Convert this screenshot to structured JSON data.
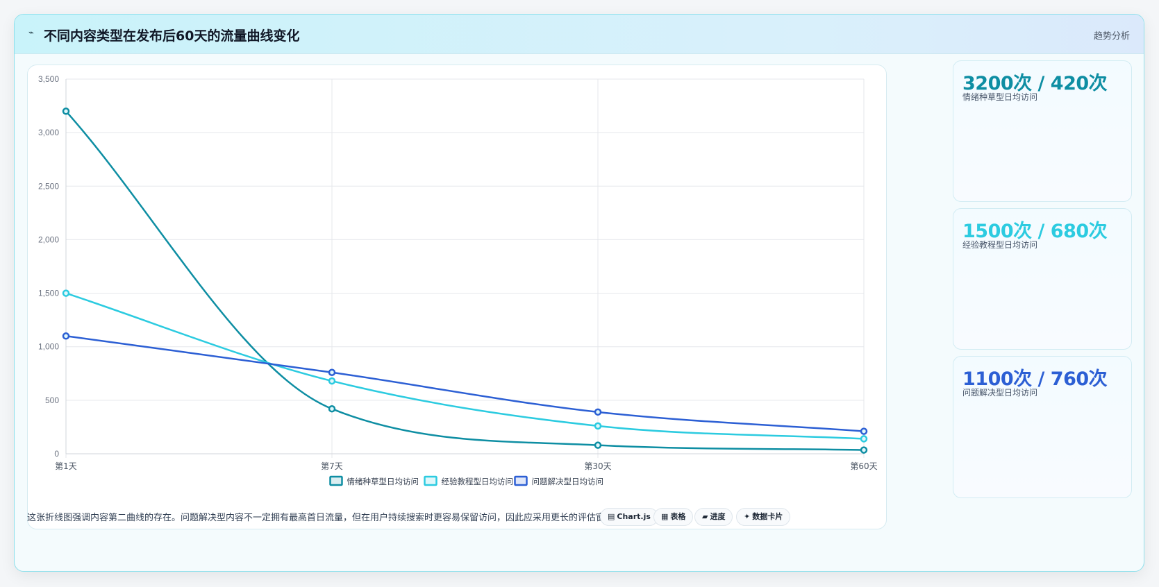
{
  "header": {
    "icon": "trend-wave-icon",
    "title": "不同内容类型在发布后60天的流量曲线变化",
    "tag": "趋势分析"
  },
  "stats": [
    {
      "value": "3200次 / 420次",
      "label": "情绪种草型日均访问",
      "color": "#0e8ea3"
    },
    {
      "value": "1500次 / 680次",
      "label": "经验教程型日均访问",
      "color": "#2ccbe0"
    },
    {
      "value": "1100次 / 760次",
      "label": "问题解决型日均访问",
      "color": "#2c5fd4"
    }
  ],
  "footer": {
    "note": "这张折线图强调内容第二曲线的存在。问题解决型内容不一定拥有最高首日流量，但在用户持续搜索时更容易保留访问，因此应采用更长的评估窗口。",
    "chips": [
      {
        "icon": "chart-icon",
        "glyph": "▤",
        "label": "Chart.js"
      },
      {
        "icon": "table-icon",
        "glyph": "▦",
        "label": "表格"
      },
      {
        "icon": "progress-icon",
        "glyph": "▰",
        "label": "进度"
      },
      {
        "icon": "sparkle-icon",
        "glyph": "✦",
        "label": "数据卡片"
      }
    ]
  },
  "chart_data": {
    "type": "line",
    "categories": [
      "第1天",
      "第7天",
      "第30天",
      "第60天"
    ],
    "series": [
      {
        "name": "情绪种草型日均访问",
        "color": "#0e8ea3",
        "values": [
          3200,
          420,
          80,
          35
        ]
      },
      {
        "name": "经验教程型日均访问",
        "color": "#2ccbe0",
        "values": [
          1500,
          680,
          260,
          140
        ]
      },
      {
        "name": "问题解决型日均访问",
        "color": "#2c5fd4",
        "values": [
          1100,
          760,
          390,
          210
        ]
      }
    ],
    "ylim": [
      0,
      3500
    ],
    "yticks": [
      "0",
      "500",
      "1,000",
      "1,500",
      "2,000",
      "2,500",
      "3,000",
      "3,500"
    ],
    "grid": true,
    "legend_position": "bottom"
  }
}
